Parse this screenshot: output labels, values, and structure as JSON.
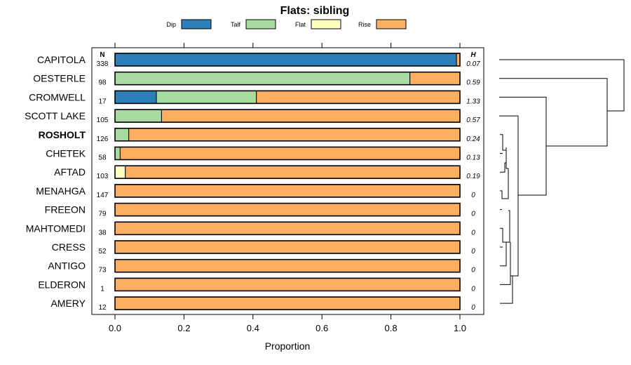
{
  "chart_data": {
    "type": "bar",
    "orientation": "horizontal",
    "stacked": true,
    "title": "Flats: sibling",
    "xlabel": "Proportion",
    "xlim": [
      0,
      1
    ],
    "xticks": [
      "0.0",
      "0.2",
      "0.4",
      "0.6",
      "0.8",
      "1.0"
    ],
    "n_header": "N",
    "h_header": "H",
    "legend": [
      {
        "name": "Dip",
        "color": "#2c7fb8"
      },
      {
        "name": "Talf",
        "color": "#a8dba0"
      },
      {
        "name": "Flat",
        "color": "#ffffbf"
      },
      {
        "name": "Rise",
        "color": "#fdae61"
      }
    ],
    "categories": [
      "CAPITOLA",
      "OESTERLE",
      "CROMWELL",
      "SCOTT LAKE",
      "ROSHOLT",
      "CHETEK",
      "AFTAD",
      "MENAHGA",
      "FREEON",
      "MAHTOMEDI",
      "CRESS",
      "ANTIGO",
      "ELDERON",
      "AMERY"
    ],
    "bold_category": "ROSHOLT",
    "n_values": [
      "338",
      "98",
      "17",
      "105",
      "126",
      "58",
      "103",
      "147",
      "79",
      "38",
      "52",
      "73",
      "1",
      "12"
    ],
    "h_values": [
      "0.07",
      "0.59",
      "1.33",
      "0.57",
      "0.24",
      "0.13",
      "0.19",
      "0",
      "0",
      "0",
      "0",
      "0",
      "0",
      "0"
    ],
    "series": [
      {
        "name": "Dip",
        "values": [
          0.99,
          0,
          0.12,
          0,
          0,
          0,
          0,
          0,
          0,
          0,
          0,
          0,
          0,
          0
        ]
      },
      {
        "name": "Talf",
        "values": [
          0,
          0.855,
          0.29,
          0.135,
          0.04,
          0.015,
          0,
          0,
          0,
          0,
          0,
          0,
          0,
          0
        ]
      },
      {
        "name": "Flat",
        "values": [
          0,
          0,
          0,
          0,
          0,
          0,
          0.03,
          0,
          0,
          0,
          0,
          0,
          0,
          0
        ]
      },
      {
        "name": "Rise",
        "values": [
          0.01,
          0.145,
          0.59,
          0.865,
          0.96,
          0.985,
          0.97,
          1,
          1,
          1,
          1,
          1,
          1,
          1
        ]
      }
    ],
    "dendrogram": "hierarchical clustering of the 14 categories by H"
  }
}
